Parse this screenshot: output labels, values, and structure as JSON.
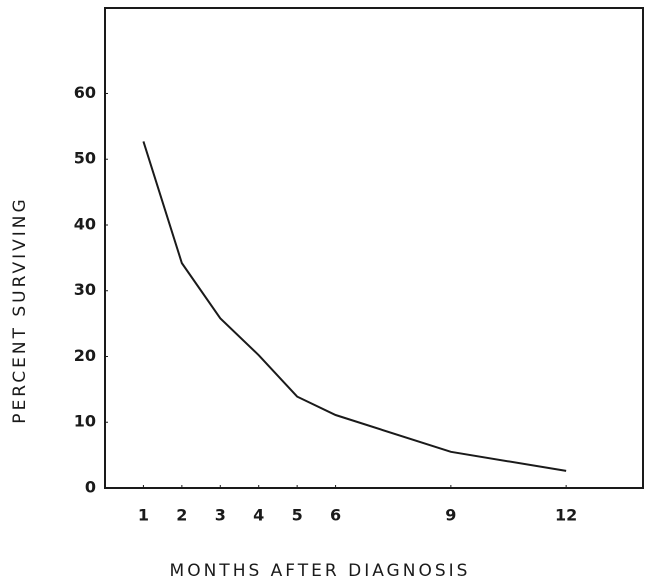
{
  "chart_data": {
    "type": "line",
    "x_label": "MONTHS AFTER DIAGNOSIS",
    "y_label": "PERCENT SURVIVING",
    "x": [
      1,
      2,
      3,
      4,
      5,
      6,
      9,
      12
    ],
    "series": [
      {
        "color": "#1a1a1a",
        "values": [
          52.7,
          34.2,
          25.8,
          20.2,
          13.9,
          11.1,
          5.5,
          2.6
        ]
      }
    ],
    "xlim": [
      0,
      14
    ],
    "xticks": [
      1,
      2,
      3,
      4,
      5,
      6,
      9,
      12
    ],
    "ylim": [
      0,
      73
    ],
    "yticks": [
      0,
      10,
      20,
      30,
      40,
      50,
      60
    ],
    "grid": false
  }
}
